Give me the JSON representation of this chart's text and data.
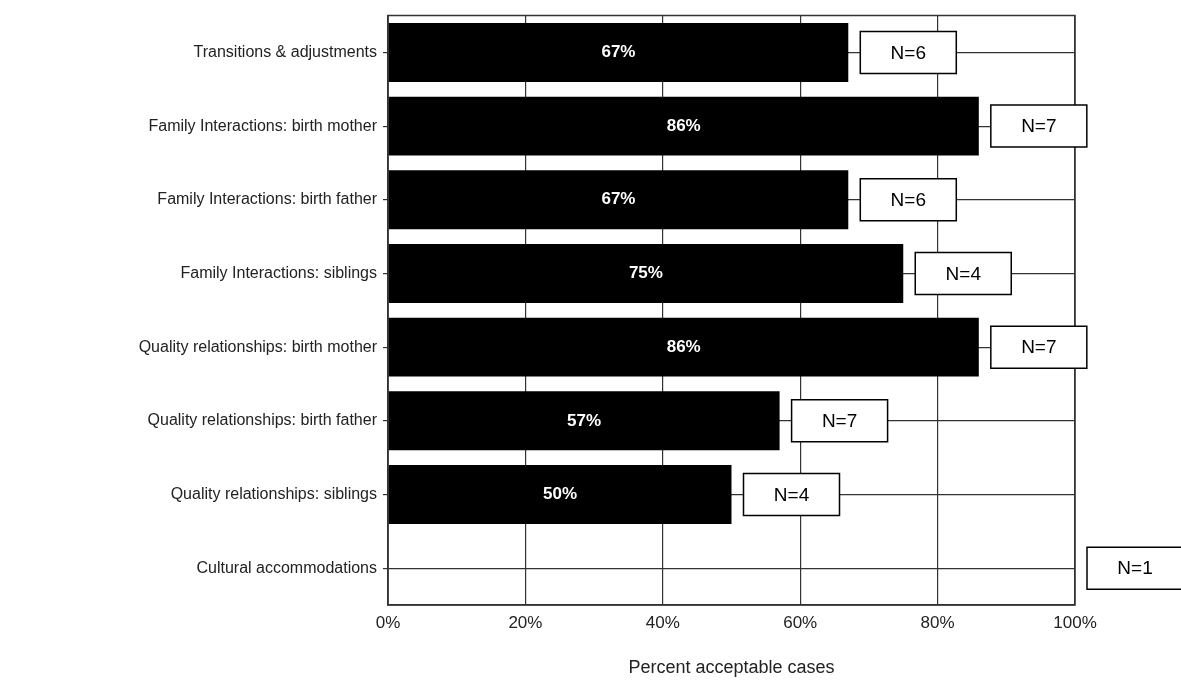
{
  "chart_data": {
    "type": "bar",
    "orientation": "horizontal",
    "xlabel": "Percent acceptable cases",
    "categories": [
      "Transitions & adjustments",
      "Family Interactions: birth mother",
      "Family Interactions: birth father",
      "Family Interactions: siblings",
      "Quality relationships: birth mother",
      "Quality relationships: birth father",
      "Quality relationships: siblings",
      "Cultural accommodations"
    ],
    "values": [
      67,
      86,
      67,
      75,
      86,
      57,
      50,
      0
    ],
    "value_labels": [
      "67%",
      "86%",
      "67%",
      "75%",
      "86%",
      "57%",
      "50%",
      null
    ],
    "color": "#000000",
    "xlim": [
      0,
      100
    ],
    "xticks": [
      {
        "value": 0,
        "label": "0%"
      },
      {
        "value": 20,
        "label": "20%"
      },
      {
        "value": 40,
        "label": "40%"
      },
      {
        "value": 60,
        "label": "60%"
      },
      {
        "value": 80,
        "label": "80%"
      },
      {
        "value": 100,
        "label": "100%"
      }
    ],
    "grid": true,
    "legend": false,
    "annotations": [
      {
        "text": "N=6",
        "x": 67,
        "y": "Transitions & adjustments"
      },
      {
        "text": "N=7",
        "x": 86,
        "y": "Family Interactions: birth mother"
      },
      {
        "text": "N=6",
        "x": 67,
        "y": "Family Interactions: birth father"
      },
      {
        "text": "N=4",
        "x": 75,
        "y": "Family Interactions: siblings"
      },
      {
        "text": "N=7",
        "x": 86,
        "y": "Quality relationships: birth mother"
      },
      {
        "text": "N=7",
        "x": 57,
        "y": "Quality relationships: birth father"
      },
      {
        "text": "N=4",
        "x": 50,
        "y": "Quality relationships: siblings"
      },
      "N=1"
    ]
  }
}
